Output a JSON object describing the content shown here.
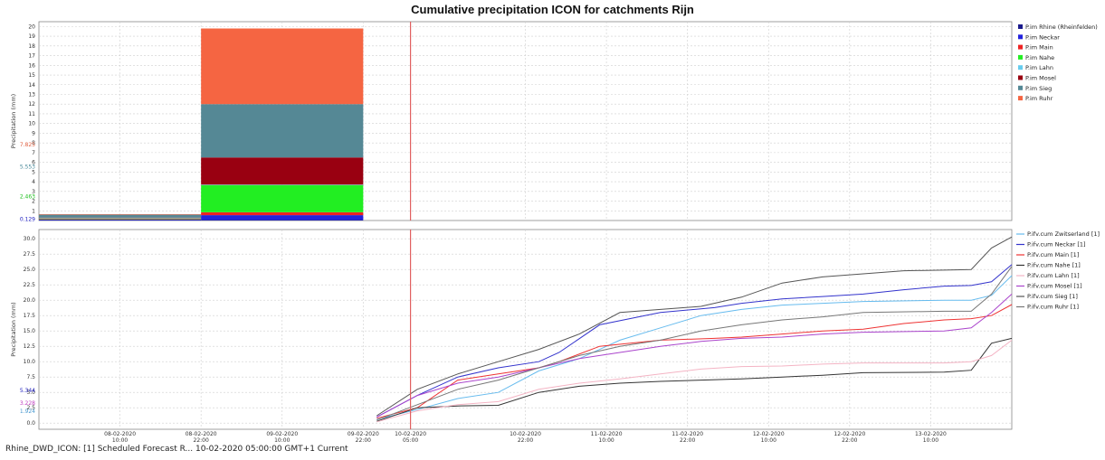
{
  "title": "Cumulative precipitation ICON for catchments Rijn",
  "status_text": "Rhine_DWD_ICON: [1] Scheduled Forecast R... 10-02-2020 05:00:00 GMT+1 Current",
  "colors": {
    "forecast_line": "#e06060",
    "plot_border": "#888888",
    "grid": "#cfcfcf"
  },
  "time_axis": {
    "min": "2020-02-07T22:00",
    "max": "2020-02-13T22:00",
    "ticks": [
      {
        "t": "2020-02-08T10:00",
        "date": "08-02-2020",
        "time": "10:00",
        "highlight": false
      },
      {
        "t": "2020-02-08T22:00",
        "date": "08-02-2020",
        "time": "22:00",
        "highlight": false
      },
      {
        "t": "2020-02-09T10:00",
        "date": "09-02-2020",
        "time": "10:00",
        "highlight": false
      },
      {
        "t": "2020-02-09T22:00",
        "date": "09-02-2020",
        "time": "22:00",
        "highlight": false
      },
      {
        "t": "2020-02-10T05:00",
        "date": "10-02-2020",
        "time": "05:00",
        "highlight": true
      },
      {
        "t": "2020-02-10T22:00",
        "date": "10-02-2020",
        "time": "22:00",
        "highlight": false
      },
      {
        "t": "2020-02-11T10:00",
        "date": "11-02-2020",
        "time": "10:00",
        "highlight": false
      },
      {
        "t": "2020-02-11T22:00",
        "date": "11-02-2020",
        "time": "22:00",
        "highlight": false
      },
      {
        "t": "2020-02-12T10:00",
        "date": "12-02-2020",
        "time": "10:00",
        "highlight": false
      },
      {
        "t": "2020-02-12T22:00",
        "date": "12-02-2020",
        "time": "22:00",
        "highlight": false
      },
      {
        "t": "2020-02-13T10:00",
        "date": "13-02-2020",
        "time": "10:00",
        "highlight": false
      }
    ],
    "highlight_color": "#5aa0e0",
    "forecast_time": "2020-02-10T05:00"
  },
  "chart_data": [
    {
      "type": "bar",
      "stacked": true,
      "ylabel": "Precipitation (mm)",
      "ylim": [
        0,
        20.5
      ],
      "yticks": [
        1,
        2,
        3,
        4,
        5,
        6,
        7,
        8,
        9,
        10,
        11,
        12,
        13,
        14,
        15,
        16,
        17,
        18,
        19,
        20
      ],
      "y_markers": [
        {
          "value": 0.129,
          "label": "0.129",
          "color": "#2020c0"
        },
        {
          "value": 2.463,
          "label": "2.463",
          "color": "#20c020"
        },
        {
          "value": 5.553,
          "label": "5.553",
          "color": "#4a8a9a"
        },
        {
          "value": 7.825,
          "label": "7.825",
          "color": "#e06040"
        }
      ],
      "bars": [
        {
          "start": "2020-02-07T22:00",
          "end": "2020-02-08T22:00",
          "stack": {
            "Rhine (Rheinfelden)": 0.05,
            "Neckar": 0.05,
            "Main": 0.05,
            "Nahe": 0.05,
            "Lahn": 0.05,
            "Mosel": 0.05,
            "Sieg": 0.3,
            "Ruhr": 0.05
          }
        },
        {
          "start": "2020-02-08T22:00",
          "end": "2020-02-09T22:00",
          "stack": {
            "Rhine (Rheinfelden)": 0.05,
            "Neckar": 0.5,
            "Main": 0.3,
            "Nahe": 2.8,
            "Lahn": 0.05,
            "Mosel": 2.8,
            "Sieg": 5.5,
            "Ruhr": 7.8
          }
        }
      ],
      "series": [
        {
          "name": "P.im Rhine (Rheinfelden)",
          "key": "Rhine (Rheinfelden)",
          "color": "#1a1a8c"
        },
        {
          "name": "P.im Neckar",
          "key": "Neckar",
          "color": "#2222dd"
        },
        {
          "name": "P.im Main",
          "key": "Main",
          "color": "#ee2222"
        },
        {
          "name": "P.im Nahe",
          "key": "Nahe",
          "color": "#22ee22"
        },
        {
          "name": "P.im Lahn",
          "key": "Lahn",
          "color": "#66ccee"
        },
        {
          "name": "P.im Mosel",
          "key": "Mosel",
          "color": "#990011"
        },
        {
          "name": "P.im Sieg",
          "key": "Sieg",
          "color": "#558895"
        },
        {
          "name": "P.im Ruhr",
          "key": "Ruhr",
          "color": "#f56542"
        }
      ]
    },
    {
      "type": "line",
      "ylabel": "Precipitation (mm)",
      "ylim": [
        -1.0,
        31.5
      ],
      "yticks": [
        0.0,
        2.5,
        5.0,
        7.5,
        10.0,
        12.5,
        15.0,
        17.5,
        20.0,
        22.5,
        25.0,
        27.5,
        30.0
      ],
      "y_markers": [
        {
          "value": 1.924,
          "label": "1.924",
          "color": "#4a9ad0"
        },
        {
          "value": 3.228,
          "label": "3.228",
          "color": "#c040c0"
        },
        {
          "value": 5.344,
          "label": "5.344",
          "color": "#2020c0"
        }
      ],
      "series": [
        {
          "name": "P.ifv.cum Zwitserland [1]",
          "color": "#66bbee",
          "points": [
            [
              "2020-02-10T00:00",
              0.6
            ],
            [
              "2020-02-10T06:00",
              2.2
            ],
            [
              "2020-02-10T12:00",
              4.0
            ],
            [
              "2020-02-10T18:00",
              5.0
            ],
            [
              "2020-02-11T00:00",
              8.5
            ],
            [
              "2020-02-11T06:00",
              10.5
            ],
            [
              "2020-02-11T12:00",
              13.5
            ],
            [
              "2020-02-11T18:00",
              15.5
            ],
            [
              "2020-02-12T00:00",
              17.5
            ],
            [
              "2020-02-12T06:00",
              18.5
            ],
            [
              "2020-02-12T12:00",
              19.2
            ],
            [
              "2020-02-12T18:00",
              19.5
            ],
            [
              "2020-02-13T00:00",
              19.8
            ],
            [
              "2020-02-13T12:00",
              20.0
            ],
            [
              "2020-02-13T16:00",
              20.0
            ],
            [
              "2020-02-13T19:00",
              20.8
            ],
            [
              "2020-02-13T22:00",
              24.0
            ]
          ]
        },
        {
          "name": "P.ifv.cum Neckar [1]",
          "color": "#3333cc",
          "points": [
            [
              "2020-02-10T00:00",
              1.0
            ],
            [
              "2020-02-10T06:00",
              4.5
            ],
            [
              "2020-02-10T12:00",
              7.5
            ],
            [
              "2020-02-10T18:00",
              9.0
            ],
            [
              "2020-02-11T00:00",
              10.0
            ],
            [
              "2020-02-11T03:00",
              11.5
            ],
            [
              "2020-02-11T09:00",
              16.0
            ],
            [
              "2020-02-11T18:00",
              18.0
            ],
            [
              "2020-02-12T02:00",
              18.8
            ],
            [
              "2020-02-12T06:00",
              19.5
            ],
            [
              "2020-02-12T12:00",
              20.2
            ],
            [
              "2020-02-12T18:00",
              20.6
            ],
            [
              "2020-02-13T00:00",
              21.0
            ],
            [
              "2020-02-13T06:00",
              21.7
            ],
            [
              "2020-02-13T12:00",
              22.3
            ],
            [
              "2020-02-13T16:00",
              22.4
            ],
            [
              "2020-02-13T19:00",
              23.0
            ],
            [
              "2020-02-13T22:00",
              25.8
            ]
          ]
        },
        {
          "name": "P.ifv.cum Main [1]",
          "color": "#ee3333",
          "points": [
            [
              "2020-02-10T00:00",
              0.8
            ],
            [
              "2020-02-10T06:00",
              2.5
            ],
            [
              "2020-02-10T12:00",
              7.0
            ],
            [
              "2020-02-10T18:00",
              8.0
            ],
            [
              "2020-02-11T00:00",
              9.0
            ],
            [
              "2020-02-11T03:00",
              10.0
            ],
            [
              "2020-02-11T09:00",
              12.5
            ],
            [
              "2020-02-11T18:00",
              13.5
            ],
            [
              "2020-02-12T02:00",
              13.8
            ],
            [
              "2020-02-12T06:00",
              14.0
            ],
            [
              "2020-02-12T12:00",
              14.5
            ],
            [
              "2020-02-12T18:00",
              15.0
            ],
            [
              "2020-02-13T00:00",
              15.3
            ],
            [
              "2020-02-13T06:00",
              16.2
            ],
            [
              "2020-02-13T12:00",
              16.8
            ],
            [
              "2020-02-13T16:00",
              17.0
            ],
            [
              "2020-02-13T19:00",
              17.5
            ],
            [
              "2020-02-13T22:00",
              19.3
            ]
          ]
        },
        {
          "name": "P.ifv.cum Nahe [1]",
          "color": "#333333",
          "points": [
            [
              "2020-02-10T00:00",
              0.3
            ],
            [
              "2020-02-10T06:00",
              2.5
            ],
            [
              "2020-02-10T12:00",
              2.8
            ],
            [
              "2020-02-10T18:00",
              2.9
            ],
            [
              "2020-02-11T00:00",
              5.0
            ],
            [
              "2020-02-11T06:00",
              6.0
            ],
            [
              "2020-02-11T12:00",
              6.5
            ],
            [
              "2020-02-11T18:00",
              6.8
            ],
            [
              "2020-02-12T00:00",
              7.0
            ],
            [
              "2020-02-12T06:00",
              7.2
            ],
            [
              "2020-02-12T12:00",
              7.5
            ],
            [
              "2020-02-12T18:00",
              7.8
            ],
            [
              "2020-02-13T00:00",
              8.2
            ],
            [
              "2020-02-13T12:00",
              8.3
            ],
            [
              "2020-02-13T16:00",
              8.6
            ],
            [
              "2020-02-13T19:00",
              13.0
            ],
            [
              "2020-02-13T22:00",
              13.8
            ]
          ]
        },
        {
          "name": "P.ifv.cum Lahn [1]",
          "color": "#f4b4c4",
          "points": [
            [
              "2020-02-10T00:00",
              0.2
            ],
            [
              "2020-02-10T06:00",
              2.0
            ],
            [
              "2020-02-10T12:00",
              3.0
            ],
            [
              "2020-02-10T18:00",
              3.5
            ],
            [
              "2020-02-11T00:00",
              5.5
            ],
            [
              "2020-02-11T06:00",
              6.5
            ],
            [
              "2020-02-11T12:00",
              7.2
            ],
            [
              "2020-02-11T18:00",
              8.0
            ],
            [
              "2020-02-12T00:00",
              8.8
            ],
            [
              "2020-02-12T06:00",
              9.2
            ],
            [
              "2020-02-12T12:00",
              9.3
            ],
            [
              "2020-02-12T18:00",
              9.6
            ],
            [
              "2020-02-13T00:00",
              9.8
            ],
            [
              "2020-02-13T12:00",
              9.8
            ],
            [
              "2020-02-13T16:00",
              10.0
            ],
            [
              "2020-02-13T19:00",
              11.0
            ],
            [
              "2020-02-13T22:00",
              13.5
            ]
          ]
        },
        {
          "name": "P.ifv.cum Mosel [1]",
          "color": "#aa44cc",
          "points": [
            [
              "2020-02-10T00:00",
              1.0
            ],
            [
              "2020-02-10T06:00",
              4.5
            ],
            [
              "2020-02-10T12:00",
              6.5
            ],
            [
              "2020-02-10T18:00",
              7.5
            ],
            [
              "2020-02-11T00:00",
              9.0
            ],
            [
              "2020-02-11T06:00",
              10.5
            ],
            [
              "2020-02-11T12:00",
              11.5
            ],
            [
              "2020-02-11T18:00",
              12.5
            ],
            [
              "2020-02-12T00:00",
              13.3
            ],
            [
              "2020-02-12T06:00",
              13.8
            ],
            [
              "2020-02-12T12:00",
              14.0
            ],
            [
              "2020-02-12T18:00",
              14.5
            ],
            [
              "2020-02-13T00:00",
              14.8
            ],
            [
              "2020-02-13T12:00",
              15.0
            ],
            [
              "2020-02-13T16:00",
              15.5
            ],
            [
              "2020-02-13T19:00",
              18.0
            ],
            [
              "2020-02-13T22:00",
              21.0
            ]
          ]
        },
        {
          "name": "P.ifv.cum Sieg [1]",
          "color": "#555555",
          "points": [
            [
              "2020-02-10T00:00",
              1.2
            ],
            [
              "2020-02-10T06:00",
              5.5
            ],
            [
              "2020-02-10T12:00",
              8.0
            ],
            [
              "2020-02-10T18:00",
              10.0
            ],
            [
              "2020-02-11T00:00",
              12.0
            ],
            [
              "2020-02-11T06:00",
              14.5
            ],
            [
              "2020-02-11T12:00",
              18.0
            ],
            [
              "2020-02-11T18:00",
              18.5
            ],
            [
              "2020-02-12T00:00",
              19.0
            ],
            [
              "2020-02-12T06:00",
              20.5
            ],
            [
              "2020-02-12T12:00",
              22.8
            ],
            [
              "2020-02-12T18:00",
              23.8
            ],
            [
              "2020-02-13T00:00",
              24.3
            ],
            [
              "2020-02-13T06:00",
              24.8
            ],
            [
              "2020-02-13T12:00",
              24.9
            ],
            [
              "2020-02-13T16:00",
              25.0
            ],
            [
              "2020-02-13T19:00",
              28.5
            ],
            [
              "2020-02-13T22:00",
              30.3
            ]
          ]
        },
        {
          "name": "P.ifv.cum Ruhr [1]",
          "color": "#777777",
          "points": [
            [
              "2020-02-10T00:00",
              0.5
            ],
            [
              "2020-02-10T06:00",
              3.0
            ],
            [
              "2020-02-10T12:00",
              5.5
            ],
            [
              "2020-02-10T18:00",
              7.0
            ],
            [
              "2020-02-11T00:00",
              9.0
            ],
            [
              "2020-02-11T06:00",
              11.0
            ],
            [
              "2020-02-11T12:00",
              12.5
            ],
            [
              "2020-02-11T18:00",
              13.5
            ],
            [
              "2020-02-12T00:00",
              15.0
            ],
            [
              "2020-02-12T06:00",
              16.0
            ],
            [
              "2020-02-12T12:00",
              16.8
            ],
            [
              "2020-02-12T18:00",
              17.3
            ],
            [
              "2020-02-13T00:00",
              18.0
            ],
            [
              "2020-02-13T12:00",
              18.2
            ],
            [
              "2020-02-13T16:00",
              18.2
            ],
            [
              "2020-02-13T19:00",
              21.0
            ],
            [
              "2020-02-13T22:00",
              25.5
            ]
          ]
        }
      ]
    }
  ]
}
